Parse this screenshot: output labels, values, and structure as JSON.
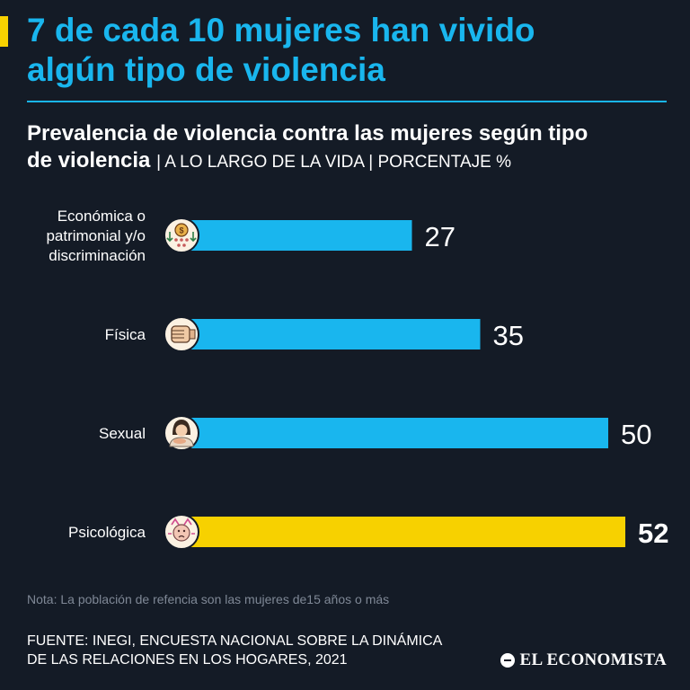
{
  "headline": {
    "line1": "7 de cada 10 mujeres han vivido",
    "line2": "algún tipo de violencia"
  },
  "subtitle": {
    "line1": "Prevalencia de violencia contra las mujeres según tipo",
    "line2": "de violencia",
    "meta": "| A LO LARGO DE LA VIDA | PORCENTAJE %"
  },
  "chart_data": {
    "type": "bar",
    "orientation": "horizontal",
    "title": "Prevalencia de violencia contra las mujeres según tipo de violencia",
    "xlabel": "",
    "ylabel": "",
    "unit": "PORCENTAJE %",
    "xlim": [
      0,
      60
    ],
    "categories": [
      {
        "label": [
          "Económica o",
          "patrimonial y/o",
          "discriminación"
        ],
        "icon": "money-bag-icon"
      },
      {
        "label": [
          "Física"
        ],
        "icon": "fist-icon"
      },
      {
        "label": [
          "Sexual"
        ],
        "icon": "woman-icon"
      },
      {
        "label": [
          "Psicológica"
        ],
        "icon": "distressed-face-icon"
      }
    ],
    "values": [
      27,
      35,
      50,
      52
    ],
    "highlight_index": 3,
    "colors": {
      "default": "#19b6ee",
      "highlight": "#f7d100"
    }
  },
  "note": "Nota: La población de refencia son las mujeres de15 años o más",
  "source": {
    "line1": "FUENTE: INEGI, ENCUESTA NACIONAL SOBRE LA DINÁMICA",
    "line2": "DE LAS RELACIONES EN LOS HOGARES, 2021"
  },
  "brand": "EL ECONOMISTA",
  "colors": {
    "background": "#141b26",
    "accent_blue": "#19b6ee",
    "accent_yellow": "#f7d100"
  }
}
